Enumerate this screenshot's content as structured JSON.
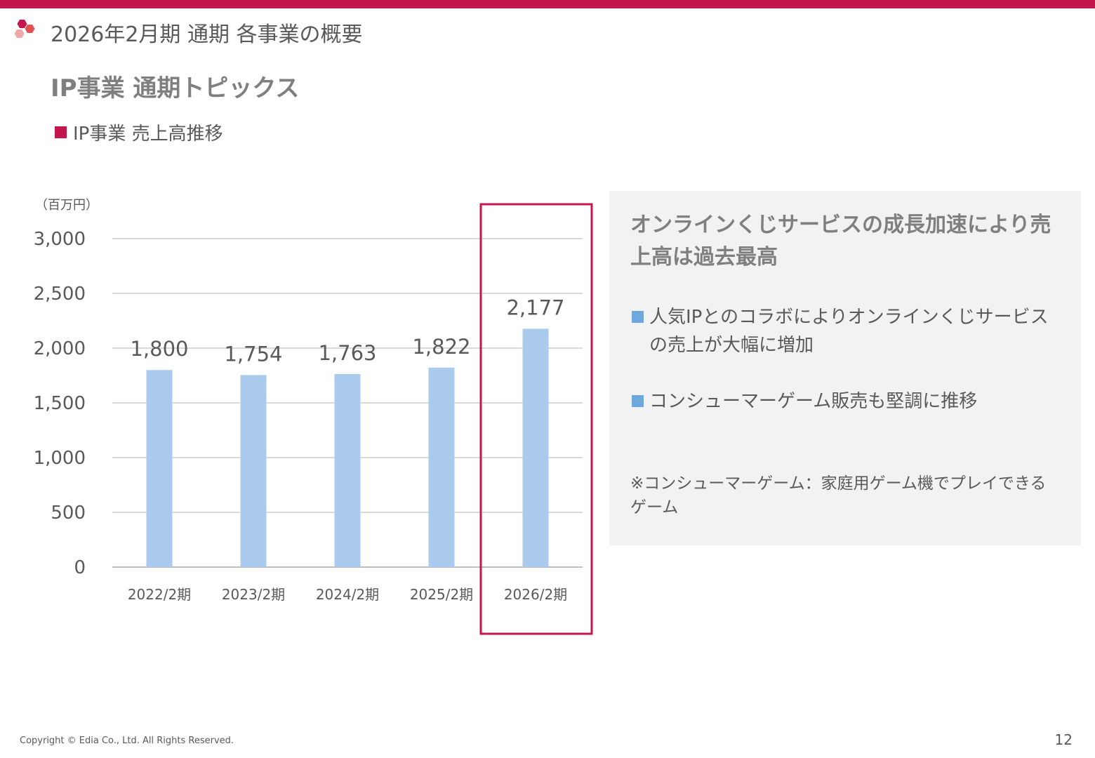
{
  "header": {
    "page_title": "2026年2月期 通期 各事業の概要",
    "section_title": "IP事業 通期トピックス",
    "sub_heading": "IP事業 売上高推移"
  },
  "colors": {
    "accent": "#c4154c",
    "bar": "#abcbee",
    "info_bullet": "#6fa8dc",
    "box_bg": "#f2f2f2"
  },
  "chart_data": {
    "type": "bar",
    "unit_label": "（百万円）",
    "categories": [
      "2022/2期",
      "2023/2期",
      "2024/2期",
      "2025/2期",
      "2026/2期"
    ],
    "values": [
      1800,
      1754,
      1763,
      1822,
      2177
    ],
    "data_labels": [
      "1,800",
      "1,754",
      "1,763",
      "1,822",
      "2,177"
    ],
    "ylim": [
      0,
      3000
    ],
    "yticks": [
      0,
      500,
      1000,
      1500,
      2000,
      2500,
      3000
    ],
    "ytick_labels": [
      "0",
      "500",
      "1,000",
      "1,500",
      "2,000",
      "2,500",
      "3,000"
    ],
    "grid": true,
    "highlight_category": "2026/2期"
  },
  "info_box": {
    "headline": "オンラインくじサービスの成長加速により売上高は過去最高",
    "bullets": [
      "人気IPとのコラボによりオンラインくじサービスの売上が大幅に増加",
      "コンシューマーゲーム販売も堅調に推移"
    ],
    "note": "※コンシューマーゲーム：家庭用ゲーム機でプレイできるゲーム"
  },
  "footer": {
    "copyright": "Copyright © Edia Co., Ltd. All Rights Reserved.",
    "page_number": "12"
  }
}
